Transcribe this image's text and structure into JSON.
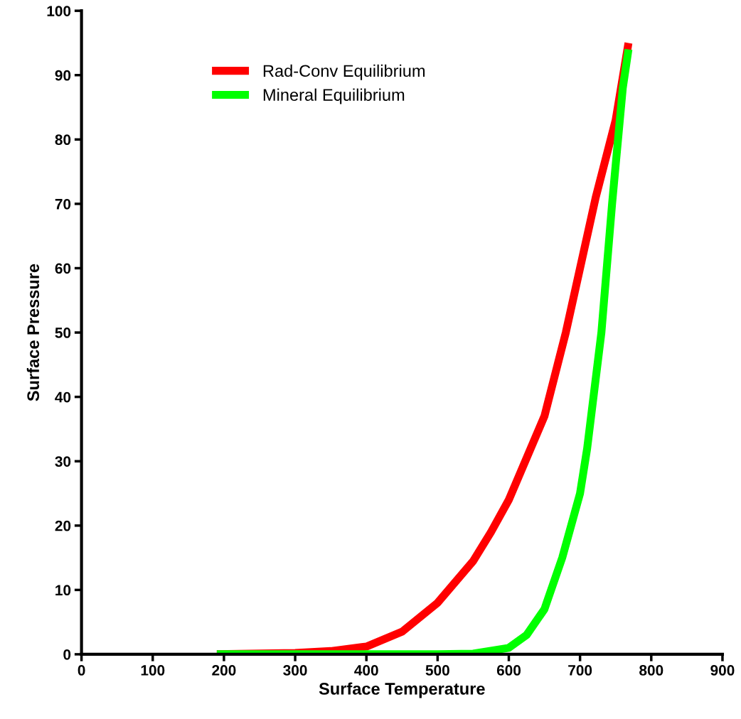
{
  "chart_data": {
    "type": "line",
    "xlabel": "Surface Temperature",
    "ylabel": "Surface Pressure",
    "xlim": [
      0,
      900
    ],
    "xticks": [
      0,
      100,
      200,
      300,
      400,
      500,
      600,
      700,
      800,
      900
    ],
    "ylim": [
      0,
      100
    ],
    "yticks": [
      0,
      10,
      20,
      30,
      40,
      50,
      60,
      70,
      80,
      90,
      100
    ],
    "grid": false,
    "legend": "top left",
    "marker": "none",
    "line_style": "solid",
    "series": [
      {
        "name": "Rad-Conv Equilibrium",
        "color": "#ff0000",
        "x": [
          190,
          300,
          350,
          400,
          450,
          500,
          550,
          575,
          600,
          650,
          680,
          700,
          722,
          750,
          768
        ],
        "values": [
          0,
          0.2,
          0.5,
          1.2,
          3.5,
          8,
          14.5,
          19,
          24,
          37,
          50,
          60,
          71,
          83,
          95
        ]
      },
      {
        "name": "Mineral Equilibrium",
        "color": "#00ff00",
        "x": [
          190,
          500,
          550,
          600,
          625,
          650,
          675,
          700,
          710,
          730,
          745,
          760,
          768
        ],
        "values": [
          0,
          0,
          0.1,
          1,
          3,
          7,
          15,
          25,
          32,
          50,
          70,
          88,
          94
        ]
      }
    ]
  }
}
